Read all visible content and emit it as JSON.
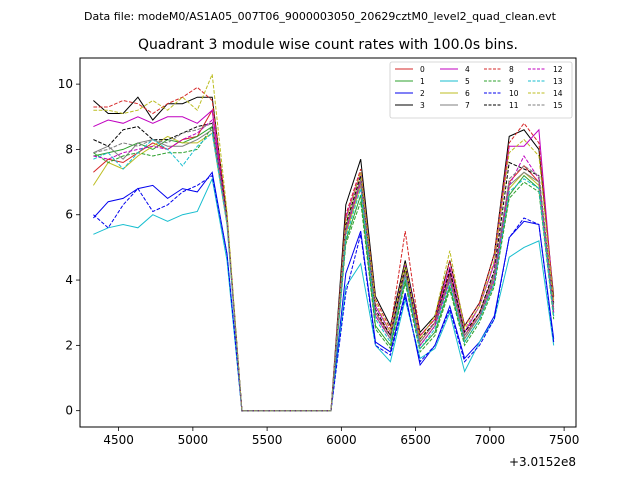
{
  "header": {
    "data_file": "Data file: modeM0/AS1A05_007T06_9000003050_20629cztM0_level2_quad_clean.evt"
  },
  "chart_data": {
    "type": "line",
    "title": "Quadrant 3 module wise count rates with 100.0s bins.",
    "xlabel": "",
    "ylabel": "",
    "offset_label": "+3.0152e8",
    "xlim": [
      4240,
      7580
    ],
    "ylim": [
      -0.5,
      10.8
    ],
    "xticks": [
      4500,
      5000,
      5500,
      6000,
      6500,
      7000,
      7500
    ],
    "xtick_labels": [
      "4500",
      "5000",
      "5500",
      "6000",
      "6500",
      "7000",
      "7500"
    ],
    "yticks": [
      0,
      2,
      4,
      6,
      8,
      10
    ],
    "ytick_labels": [
      "0",
      "2",
      "4",
      "6",
      "8",
      "10"
    ],
    "grid": false,
    "legend_position": "top-right",
    "x": [
      4330,
      4430,
      4530,
      4630,
      4730,
      4830,
      4930,
      5030,
      5130,
      5230,
      5330,
      5430,
      5530,
      5630,
      5730,
      5830,
      5930,
      6030,
      6130,
      6230,
      6330,
      6430,
      6530,
      6630,
      6730,
      6830,
      6930,
      7030,
      7130,
      7230,
      7330,
      7430
    ],
    "series": [
      {
        "name": "0",
        "color": "#d62728",
        "dash": false,
        "values": [
          7.3,
          7.7,
          7.6,
          7.9,
          8.2,
          8.0,
          8.3,
          8.4,
          9.2,
          5.8,
          0,
          0,
          0,
          0,
          0,
          0,
          0,
          5.6,
          7.1,
          3.0,
          2.3,
          4.3,
          2.1,
          2.7,
          4.2,
          2.3,
          3.0,
          4.2,
          7.0,
          7.5,
          7.0,
          3.1
        ]
      },
      {
        "name": "1",
        "color": "#2ca02c",
        "dash": false,
        "values": [
          7.8,
          7.9,
          8.0,
          8.2,
          8.0,
          8.3,
          8.2,
          8.4,
          8.7,
          5.9,
          0,
          0,
          0,
          0,
          0,
          0,
          0,
          5.2,
          6.6,
          2.6,
          2.0,
          4.0,
          1.9,
          2.4,
          3.8,
          2.1,
          2.8,
          3.9,
          6.6,
          7.2,
          6.8,
          2.9
        ]
      },
      {
        "name": "2",
        "color": "#0000ee",
        "dash": false,
        "values": [
          5.9,
          6.4,
          6.5,
          6.8,
          6.9,
          6.5,
          6.8,
          6.7,
          7.3,
          4.8,
          0,
          0,
          0,
          0,
          0,
          0,
          0,
          4.2,
          5.5,
          2.1,
          1.8,
          3.6,
          1.4,
          2.0,
          3.2,
          1.6,
          2.1,
          2.9,
          5.3,
          5.8,
          5.7,
          2.2
        ]
      },
      {
        "name": "3",
        "color": "#000000",
        "dash": false,
        "values": [
          9.5,
          9.1,
          9.1,
          9.6,
          8.9,
          9.4,
          9.4,
          9.6,
          9.6,
          5.9,
          0,
          0,
          0,
          0,
          0,
          0,
          0,
          6.3,
          7.7,
          3.5,
          2.6,
          4.6,
          2.4,
          2.9,
          4.6,
          2.6,
          3.3,
          4.8,
          8.4,
          8.6,
          8.0,
          3.5
        ]
      },
      {
        "name": "4",
        "color": "#c000c0",
        "dash": false,
        "values": [
          8.7,
          8.9,
          8.8,
          9.0,
          8.8,
          9.0,
          9.0,
          8.8,
          9.2,
          5.8,
          0,
          0,
          0,
          0,
          0,
          0,
          0,
          5.9,
          7.3,
          3.2,
          2.4,
          4.5,
          2.3,
          2.8,
          4.4,
          2.4,
          3.2,
          4.5,
          8.1,
          8.1,
          8.6,
          3.3
        ]
      },
      {
        "name": "5",
        "color": "#17becf",
        "dash": false,
        "values": [
          5.4,
          5.6,
          5.7,
          5.6,
          6.0,
          5.8,
          6.0,
          6.1,
          7.1,
          4.6,
          0,
          0,
          0,
          0,
          0,
          0,
          0,
          3.8,
          4.5,
          2.0,
          1.5,
          3.4,
          1.6,
          1.9,
          3.0,
          1.2,
          2.1,
          2.8,
          4.7,
          5.0,
          5.2,
          2.0
        ]
      },
      {
        "name": "6",
        "color": "#bcbd22",
        "dash": false,
        "values": [
          6.9,
          7.6,
          7.4,
          7.8,
          8.1,
          8.4,
          8.2,
          8.2,
          8.5,
          5.7,
          0,
          0,
          0,
          0,
          0,
          0,
          0,
          5.4,
          6.9,
          2.9,
          2.2,
          4.3,
          2.0,
          2.6,
          4.0,
          2.2,
          2.9,
          4.0,
          6.8,
          7.3,
          6.9,
          3.0
        ]
      },
      {
        "name": "7",
        "color": "#7f7f7f",
        "dash": false,
        "values": [
          7.9,
          8.1,
          7.7,
          8.2,
          8.3,
          8.1,
          8.1,
          8.3,
          8.6,
          5.8,
          0,
          0,
          0,
          0,
          0,
          0,
          0,
          5.5,
          7.0,
          2.9,
          2.2,
          4.2,
          2.0,
          2.6,
          4.1,
          2.2,
          2.9,
          4.1,
          6.9,
          7.3,
          7.0,
          3.0
        ]
      },
      {
        "name": "8",
        "color": "#d62728",
        "dash": true,
        "values": [
          9.3,
          9.3,
          9.5,
          9.4,
          9.1,
          9.4,
          9.6,
          9.9,
          9.5,
          6.0,
          0,
          0,
          0,
          0,
          0,
          0,
          0,
          6.0,
          7.4,
          3.4,
          2.5,
          5.5,
          2.3,
          2.8,
          4.6,
          2.6,
          3.3,
          4.8,
          8.2,
          8.8,
          8.2,
          3.4
        ]
      },
      {
        "name": "9",
        "color": "#2ca02c",
        "dash": true,
        "values": [
          7.9,
          7.6,
          7.8,
          7.9,
          7.8,
          7.9,
          7.9,
          8.0,
          8.7,
          5.9,
          0,
          0,
          0,
          0,
          0,
          0,
          0,
          5.1,
          6.4,
          2.5,
          1.9,
          3.9,
          1.8,
          2.3,
          3.7,
          2.0,
          2.7,
          3.8,
          6.5,
          7.0,
          6.7,
          2.8
        ]
      },
      {
        "name": "10",
        "color": "#0000ee",
        "dash": true,
        "values": [
          6.0,
          5.6,
          6.3,
          6.8,
          6.1,
          6.3,
          6.7,
          6.9,
          7.2,
          4.8,
          0,
          0,
          0,
          0,
          0,
          0,
          0,
          3.6,
          5.4,
          2.0,
          1.7,
          3.5,
          1.5,
          2.0,
          3.1,
          1.5,
          2.0,
          2.8,
          5.3,
          5.9,
          5.7,
          2.1
        ]
      },
      {
        "name": "11",
        "color": "#000000",
        "dash": true,
        "values": [
          8.3,
          8.1,
          8.6,
          8.7,
          8.3,
          8.3,
          8.5,
          8.7,
          8.8,
          5.9,
          0,
          0,
          0,
          0,
          0,
          0,
          0,
          5.7,
          7.2,
          3.1,
          2.3,
          4.4,
          2.2,
          2.7,
          4.3,
          2.4,
          3.0,
          4.3,
          7.6,
          7.4,
          7.2,
          3.2
        ]
      },
      {
        "name": "12",
        "color": "#c000c0",
        "dash": true,
        "values": [
          7.8,
          7.7,
          7.9,
          8.0,
          8.1,
          8.0,
          8.3,
          8.5,
          8.9,
          5.8,
          0,
          0,
          0,
          0,
          0,
          0,
          0,
          5.5,
          7.0,
          2.9,
          2.2,
          4.2,
          2.0,
          2.6,
          4.0,
          2.3,
          2.9,
          4.0,
          6.9,
          7.8,
          7.1,
          3.0
        ]
      },
      {
        "name": "13",
        "color": "#17becf",
        "dash": true,
        "values": [
          7.7,
          7.9,
          7.4,
          7.9,
          8.3,
          8.0,
          7.5,
          8.1,
          8.5,
          5.7,
          0,
          0,
          0,
          0,
          0,
          0,
          0,
          5.3,
          6.8,
          2.8,
          2.1,
          4.1,
          1.9,
          2.5,
          3.9,
          2.1,
          2.8,
          3.9,
          6.7,
          7.1,
          6.8,
          2.9
        ]
      },
      {
        "name": "14",
        "color": "#bcbd22",
        "dash": true,
        "values": [
          9.2,
          9.2,
          9.1,
          9.2,
          9.5,
          9.2,
          9.6,
          9.2,
          10.3,
          6.1,
          0,
          0,
          0,
          0,
          0,
          0,
          0,
          5.8,
          7.3,
          3.3,
          2.4,
          4.5,
          2.2,
          2.9,
          4.9,
          2.5,
          3.2,
          4.6,
          7.9,
          8.3,
          7.8,
          3.3
        ]
      },
      {
        "name": "15",
        "color": "#7f7f7f",
        "dash": true,
        "values": [
          7.9,
          8.0,
          8.2,
          8.1,
          8.3,
          8.2,
          8.5,
          8.6,
          8.8,
          5.8,
          0,
          0,
          0,
          0,
          0,
          0,
          0,
          5.6,
          7.1,
          3.0,
          2.2,
          4.2,
          2.1,
          2.7,
          4.1,
          2.3,
          2.9,
          4.2,
          7.1,
          7.5,
          7.2,
          3.1
        ]
      }
    ]
  }
}
